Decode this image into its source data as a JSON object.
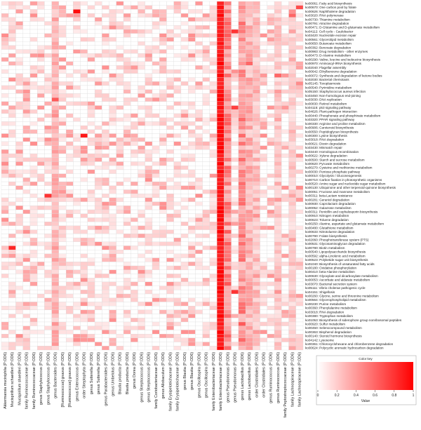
{
  "chart_data": {
    "type": "heatmap",
    "title": "",
    "xlabel": "",
    "ylabel": "",
    "color_key": {
      "title": "Color key",
      "axis_label": "Value",
      "ticks": [
        "0",
        "0.2",
        "0.4",
        "0.6",
        "0.8",
        "1"
      ],
      "range": [
        0,
        1
      ],
      "low_color": "#ffffff",
      "high_color": "#ff0000"
    },
    "columns": [
      "Akkermansia muciniphila (P:OD6)",
      "Mucispirillum schaedleri (P:OD6)",
      "Mucispirillum shaedleri (P:OD6)",
      "family Ruminococcaceae (P:OD6)",
      "family Ruminococcaceae (P:OD6)",
      "genus Staphylococcus (P:OD6)",
      "genus Staphylococcus (P:OD6)",
      "genus Bacteroides (P:OD6)",
      "[Ruminococcus] gnavus (P:OD6)",
      "[Ruminococcus] gnavus (P:OD6)",
      "genus Enterococcus (P:OD6)",
      "order Streptophyta (P:OD6)",
      "genus Sutterella (P:OD6)",
      "genus Sutterella (P:OD6)",
      "genus Parabacteroides (P:OD6)",
      "genus Umbelolus (P:OD6)",
      "Blautia producta (P:OD6)",
      "Blautia producta (P:OD6)",
      "genus Dorea (P:OD6)",
      "genus Streptococcus (P:OD6)",
      "genus Streptococcus (P:OD6)",
      "family Coriobacteriaceae (P:OD6)",
      "genus Allobaculum (P:OD6)",
      "family Erysipelotrichaceae (P:OD6)",
      "family Erysipelotrichaceae (P:OD6)",
      "genus Blautia (P:OD6)",
      "genus Blautia (P:OD6)",
      "genus Oscillospira (P:OD6)",
      "genus Oscillospira (P:OD6)",
      "family Enterobacteriaceae (P:OD6)",
      "family Enterobacteriaceae (P:OD6)",
      "genus Pseudomonas (P:OD6)",
      "genus Pseudomonas (P:OD6)",
      "genus Lactobacillus (P:OD6)",
      "genus Lactobacillus (P:OD6)",
      "order Clostridiales (P:OD6)",
      "order Clostridiales (P:OD6)",
      "genus Ruminococcus (P:OD6)",
      "genus Ruminococcus (P:OD6)",
      "family Peptostreptococcaceae (P:OD6)",
      "family Lachnospiraceae (P:OD6)",
      "family Lachnospiraceae (P:OD6)"
    ],
    "rows": [
      "ko00061: Fatty acid biosynthesis",
      "ko00670: One carbon pool by folate",
      "ko00626: Naphthalene degradation",
      "ko03020: RNA polymerase",
      "ko00730: Thiamine metabolism",
      "ko00791: Atrazine degradation",
      "ko00471: D-Glutamine and D-glutamate metabolism",
      "ko04112: Cell cycle - Caulobacter",
      "ko03420: Nucleotide excision repair",
      "ko00561: Glycerolipid metabolism",
      "ko00650: Butanoate metabolism",
      "ko00362: Benzoate degradation",
      "ko00983: Drug metabolism - other enzymes",
      "ko00473: D-Alanine metabolism",
      "ko00290: Valine, leucine and isoleucine biosynthesis",
      "ko00970: Aminoacyl-tRNA biosynthesis",
      "ko02040: Flagellar assembly",
      "ko00642: Ethylbenzene degradation",
      "ko00072: Synthesis and degradation of ketone bodies",
      "ko02030: Bacterial chemotaxis",
      "ko05145: Toxoplasmosis",
      "ko00540: Pyrimidine metabolism",
      "ko05150: Staphylococcus aureus infection",
      "ko03450: Non-homologous end-joining",
      "ko03030: DNA replication",
      "ko00830: Retinol metabolism",
      "ko04115: p53 signaling pathway",
      "ko04626: Plant-pathogen interaction",
      "ko00440: Phosphonate and phosphinate metabolism",
      "ko03320: PPAR signaling pathway",
      "ko00330: Arginine and proline metabolism",
      "ko00906: Carotenoid biosynthesis",
      "ko00550: Peptidoglycan biosynthesis",
      "ko00300: Lysine biosynthesis",
      "ko03018: RNA degradation",
      "ko00621: Dioxin degradation",
      "ko03430: Mismatch repair",
      "ko03440: Homologous recombination",
      "ko00622: Xylene degradation",
      "ko00500: Starch and sucrose metabolism",
      "ko00620: Pyruvate metabolism",
      "ko00270: Cysteine and methionine metabolism",
      "ko00030: Pentose phosphate pathway",
      "ko00010: Glycolysis / Gluconeogenesis",
      "ko00710: Carbon fixation in photosynthetic organisms",
      "ko00520: Amino sugar and nucleotide sugar metabolism",
      "ko00130: Ubiquinone and other terpenoid-quinone biosynthesis",
      "ko00051: Fructose and mannose metabolism",
      "ko00311: beta-Lactam resistance",
      "ko00281: Geraniol degradation",
      "ko00930: Caprolactam degradation",
      "ko00052: Galactose metabolism",
      "ko00311: Penicillin and cephalosporin biosynthesis",
      "ko00910: Nitrogen metabolism",
      "ko00623: Toluene degradation",
      "ko00250: Alanine, aspartate and glutamate metabolism",
      "ko00480: Glutathione metabolism",
      "ko00633: Nitrotoluene degradation",
      "ko00790: Folate biosynthesis",
      "ko02060: Phosphotransferase system (PTS)",
      "ko00531: Glycosaminoglycan degradation",
      "ko00780: Biotin metabolism",
      "ko00540: Lipopolysaccharide biosynthesis",
      "ko00592: alpha-Linolenic acid metabolism",
      "ko00523: Polyketide sugar unit biosynthesis",
      "ko01040: Biosynthesis of unsaturated fatty acids",
      "ko00180: Oxidative phosphorylation",
      "ko00410: beta-Alanine metabolism",
      "ko00630: Glyoxylate and dicarboxylate metabolism",
      "ko00053: Ascorbate and aldarate metabolism",
      "ko03070: Bacterial secretion system",
      "ko05111: Vibrio cholerae pathogenic cycle",
      "ko04151: Shigellosis",
      "ko00260: Glycine, serine and threonine metabolism",
      "ko00564: Glycerophospholipid metabolism",
      "ko00230: Purine metabolism",
      "ko00360: Phenylalanine metabolism",
      "ko03018: RNA degradation",
      "ko00380: Tryptophan metabolism",
      "ko01053: Biosynthesis of siderophore group nonribosomal peptides",
      "ko00920: Sulfur metabolism",
      "ko00450: Selenocompound metabolism",
      "ko00363: Bisphenol degradation",
      "ko00140: Steroid hormone biosynthesis",
      "ko04142: Lysosome",
      "ko00361: Chlorocyclohexane and chlorobenzene degradation",
      "ko00624: Polycyclic aromatic hydrocarbon degradation"
    ],
    "values_note_hidden": "",
    "hot_columns": {
      "30": 0.97,
      "31": 0.55,
      "33": 0.5,
      "7": 0.35,
      "34": 0.35,
      "35": 0.3,
      "38": 0.25,
      "40": 0.2
    },
    "hot_cells": [
      [
        2,
        10,
        0.95
      ],
      [
        33,
        11,
        0.9
      ],
      [
        48,
        6,
        0.8
      ],
      [
        61,
        1,
        0.85
      ],
      [
        7,
        32,
        0.8
      ],
      [
        26,
        32,
        0.75
      ],
      [
        72,
        32,
        0.8
      ],
      [
        1,
        41,
        0.7
      ],
      [
        3,
        40,
        0.6
      ],
      [
        18,
        38,
        0.6
      ],
      [
        24,
        7,
        0.65
      ],
      [
        80,
        33,
        0.65
      ],
      [
        15,
        34,
        0.6
      ]
    ]
  }
}
